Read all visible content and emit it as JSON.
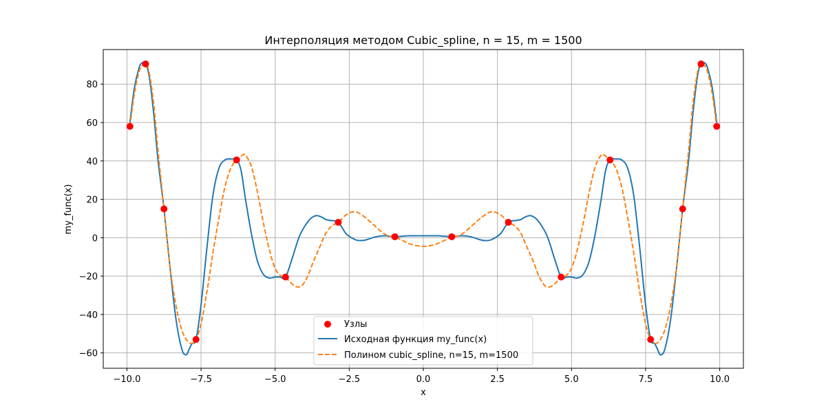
{
  "chart_data": {
    "type": "line",
    "title": "Интерполяция методом Cubic_spline, n = 15, m = 1500",
    "xlabel": "x",
    "ylabel": "my_func(x)",
    "xlim": [
      -10.8,
      10.8
    ],
    "ylim": [
      -68,
      98
    ],
    "xticks": [
      -10.0,
      -7.5,
      -5.0,
      -2.5,
      0.0,
      2.5,
      5.0,
      7.5,
      10.0
    ],
    "xtick_labels": [
      "−10.0",
      "−7.5",
      "−5.0",
      "−2.5",
      "0.0",
      "2.5",
      "5.0",
      "7.5",
      "10.0"
    ],
    "yticks": [
      -60,
      -40,
      -20,
      0,
      20,
      40,
      60,
      80
    ],
    "ytick_labels": [
      "−60",
      "−40",
      "−20",
      "0",
      "20",
      "40",
      "60",
      "80"
    ],
    "grid": true,
    "legend_position": "lower-center",
    "series": [
      {
        "name": "Узлы",
        "kind": "scatter",
        "color": "#ff0000",
        "x": [
          -9.9,
          -9.37,
          -8.75,
          -7.67,
          -6.3,
          -4.65,
          -2.87,
          -0.96,
          0.96,
          2.87,
          4.65,
          6.3,
          7.67,
          8.75,
          9.37,
          9.9
        ],
        "y": [
          58,
          90.5,
          15,
          -53,
          40.5,
          -20.5,
          8,
          0.5,
          0.5,
          8,
          -20.5,
          40.5,
          -53,
          15,
          90.5,
          58
        ]
      },
      {
        "name": "Исходная функция my_func(x)",
        "kind": "line",
        "color": "#1f77b4",
        "dash": "solid",
        "x": [
          -9.9,
          -9.75,
          -9.6,
          -9.5,
          -9.37,
          -9.25,
          -9.1,
          -8.95,
          -8.75,
          -8.55,
          -8.35,
          -8.15,
          -8.0,
          -7.9,
          -7.8,
          -7.67,
          -7.5,
          -7.3,
          -7.1,
          -6.9,
          -6.7,
          -6.5,
          -6.3,
          -6.15,
          -6.0,
          -5.8,
          -5.6,
          -5.4,
          -5.2,
          -5.0,
          -4.85,
          -4.65,
          -4.45,
          -4.2,
          -4.0,
          -3.8,
          -3.6,
          -3.4,
          -3.3,
          -3.15,
          -2.87,
          -2.6,
          -2.3,
          -2.1,
          -1.9,
          -1.6,
          -1.3,
          -0.96,
          -0.5,
          0.0,
          0.5,
          0.96,
          1.3,
          1.6,
          1.9,
          2.1,
          2.3,
          2.6,
          2.87,
          3.15,
          3.3,
          3.4,
          3.6,
          3.8,
          4.0,
          4.2,
          4.45,
          4.65,
          4.85,
          5.0,
          5.2,
          5.4,
          5.6,
          5.8,
          6.0,
          6.15,
          6.3,
          6.5,
          6.7,
          6.9,
          7.1,
          7.3,
          7.5,
          7.67,
          7.8,
          7.9,
          8.0,
          8.15,
          8.35,
          8.55,
          8.75,
          8.95,
          9.1,
          9.25,
          9.37,
          9.5,
          9.6,
          9.75,
          9.9
        ],
        "y": [
          60,
          78,
          88,
          91,
          90.5,
          84,
          65,
          40,
          15,
          -15,
          -42,
          -58,
          -61,
          -58,
          -55,
          -53,
          -35,
          -5,
          22,
          36,
          40.5,
          41,
          40.5,
          35,
          20,
          2,
          -12,
          -19,
          -21,
          -20.5,
          -20.5,
          -20.5,
          -12,
          0,
          6,
          10,
          11.5,
          10.5,
          9.5,
          9,
          8,
          2,
          -1,
          -1.5,
          -1,
          0.5,
          1,
          0.5,
          1,
          1,
          1,
          0.5,
          1,
          0.5,
          -1,
          -1.5,
          -1,
          2,
          8,
          9,
          9.5,
          10.5,
          11.5,
          10,
          6,
          0,
          -12,
          -20.5,
          -20.5,
          -20.5,
          -21,
          -19,
          -12,
          2,
          20,
          35,
          40.5,
          41,
          40.5,
          36,
          22,
          -5,
          -35,
          -53,
          -55,
          -58,
          -61,
          -58,
          -42,
          -15,
          15,
          40,
          65,
          84,
          90.5,
          91,
          88,
          78,
          60
        ]
      },
      {
        "name": "Полином cubic_spline, n=15, m=1500",
        "kind": "line",
        "color": "#ff7f0e",
        "dash": "dashed",
        "x": [
          -9.9,
          -9.75,
          -9.6,
          -9.5,
          -9.37,
          -9.25,
          -9.1,
          -8.95,
          -8.75,
          -8.55,
          -8.35,
          -8.15,
          -7.95,
          -7.8,
          -7.67,
          -7.5,
          -7.3,
          -7.1,
          -6.9,
          -6.7,
          -6.5,
          -6.3,
          -6.1,
          -6.0,
          -5.8,
          -5.6,
          -5.4,
          -5.2,
          -5.0,
          -4.8,
          -4.65,
          -4.5,
          -4.3,
          -4.1,
          -3.9,
          -3.7,
          -3.5,
          -3.3,
          -3.1,
          -2.87,
          -2.6,
          -2.3,
          -2.0,
          -1.7,
          -1.4,
          -1.2,
          -0.96,
          -0.7,
          -0.4,
          0.0,
          0.4,
          0.7,
          0.96,
          1.2,
          1.4,
          1.7,
          2.0,
          2.3,
          2.6,
          2.87,
          3.1,
          3.3,
          3.5,
          3.7,
          3.9,
          4.1,
          4.3,
          4.5,
          4.65,
          4.8,
          5.0,
          5.2,
          5.4,
          5.6,
          5.8,
          6.0,
          6.1,
          6.3,
          6.5,
          6.7,
          6.9,
          7.1,
          7.3,
          7.5,
          7.67,
          7.8,
          7.95,
          8.15,
          8.35,
          8.55,
          8.75,
          8.95,
          9.1,
          9.25,
          9.37,
          9.5,
          9.6,
          9.75,
          9.9
        ],
        "y": [
          58,
          75,
          86,
          89.5,
          90.5,
          86,
          70,
          45,
          15,
          -15,
          -35,
          -48,
          -54,
          -55,
          -53,
          -45,
          -28,
          -8,
          10,
          26,
          36,
          40.5,
          43,
          43,
          37,
          24,
          8,
          -6,
          -16,
          -20,
          -20.5,
          -23,
          -25.5,
          -25,
          -20,
          -12,
          -5,
          2,
          6,
          8,
          12,
          13.5,
          11,
          7,
          3,
          1,
          0.5,
          -1.5,
          -3.5,
          -4.5,
          -3.5,
          -1.5,
          0.5,
          1,
          3,
          7,
          11,
          13.5,
          12,
          8,
          6,
          2,
          -5,
          -12,
          -20,
          -25,
          -25.5,
          -23,
          -20.5,
          -20,
          -16,
          -6,
          8,
          24,
          37,
          43,
          43,
          40.5,
          36,
          26,
          10,
          -8,
          -28,
          -45,
          -53,
          -55,
          -54,
          -48,
          -35,
          -15,
          15,
          45,
          70,
          86,
          90.5,
          89.5,
          86,
          75,
          58
        ]
      }
    ]
  }
}
